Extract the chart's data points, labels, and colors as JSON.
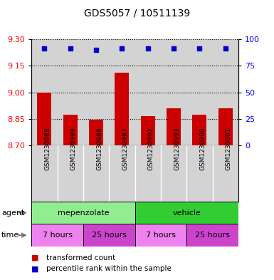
{
  "title": "GDS5057 / 10511139",
  "samples": [
    "GSM1230988",
    "GSM1230989",
    "GSM1230986",
    "GSM1230987",
    "GSM1230992",
    "GSM1230993",
    "GSM1230990",
    "GSM1230991"
  ],
  "bar_values": [
    9.0,
    8.875,
    8.845,
    9.11,
    8.865,
    8.91,
    8.875,
    8.91
  ],
  "bar_base": 8.7,
  "dot_values": [
    91,
    91,
    90,
    91,
    91,
    91,
    91,
    91
  ],
  "ylim_left": [
    8.7,
    9.3
  ],
  "ylim_right": [
    0,
    100
  ],
  "yticks_left": [
    8.7,
    8.85,
    9.0,
    9.15,
    9.3
  ],
  "yticks_right": [
    0,
    25,
    50,
    75,
    100
  ],
  "bar_color": "#cc0000",
  "dot_color": "#0000cc",
  "plot_bg": "#d3d3d3",
  "label_bg": "#c8c8c8",
  "agent_light_green": "#90EE90",
  "agent_dark_green": "#32CD32",
  "time_light_violet": "#EE82EE",
  "time_dark_violet": "#CC44CC",
  "agent_labels": [
    "mepenzolate",
    "vehicle"
  ],
  "time_labels": [
    "7 hours",
    "25 hours",
    "7 hours",
    "25 hours"
  ],
  "legend_red": "transformed count",
  "legend_blue": "percentile rank within the sample",
  "fig_width": 3.85,
  "fig_height": 3.93
}
